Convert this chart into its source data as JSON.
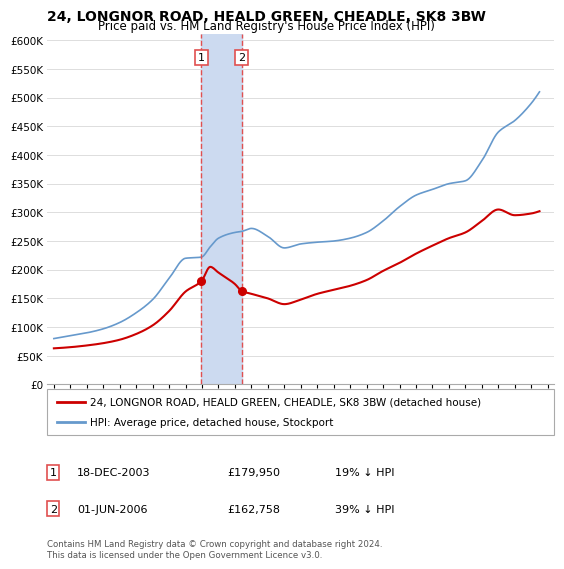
{
  "title": "24, LONGNOR ROAD, HEALD GREEN, CHEADLE, SK8 3BW",
  "subtitle": "Price paid vs. HM Land Registry's House Price Index (HPI)",
  "legend_house": "24, LONGNOR ROAD, HEALD GREEN, CHEADLE, SK8 3BW (detached house)",
  "legend_hpi": "HPI: Average price, detached house, Stockport",
  "footnote": "Contains HM Land Registry data © Crown copyright and database right 2024.\nThis data is licensed under the Open Government Licence v3.0.",
  "sale1_label": "1",
  "sale1_date": "18-DEC-2003",
  "sale1_price": "£179,950",
  "sale1_hpi": "19% ↓ HPI",
  "sale2_label": "2",
  "sale2_date": "01-JUN-2006",
  "sale2_price": "£162,758",
  "sale2_hpi": "39% ↓ HPI",
  "sale1_x": 2003.96,
  "sale1_y": 179950,
  "sale2_x": 2006.41,
  "sale2_y": 162758,
  "vline1_x": 2003.96,
  "vline2_x": 2006.41,
  "highlight_color": "#ccdaf0",
  "vline_color": "#e05050",
  "sale_dot_color": "#cc0000",
  "house_line_color": "#cc0000",
  "hpi_line_color": "#6699cc",
  "ylim": [
    0,
    610000
  ],
  "yticks": [
    0,
    50000,
    100000,
    150000,
    200000,
    250000,
    300000,
    350000,
    400000,
    450000,
    500000,
    550000,
    600000
  ],
  "xlim": [
    1994.6,
    2025.4
  ],
  "background_color": "#ffffff",
  "grid_color": "#dddddd"
}
